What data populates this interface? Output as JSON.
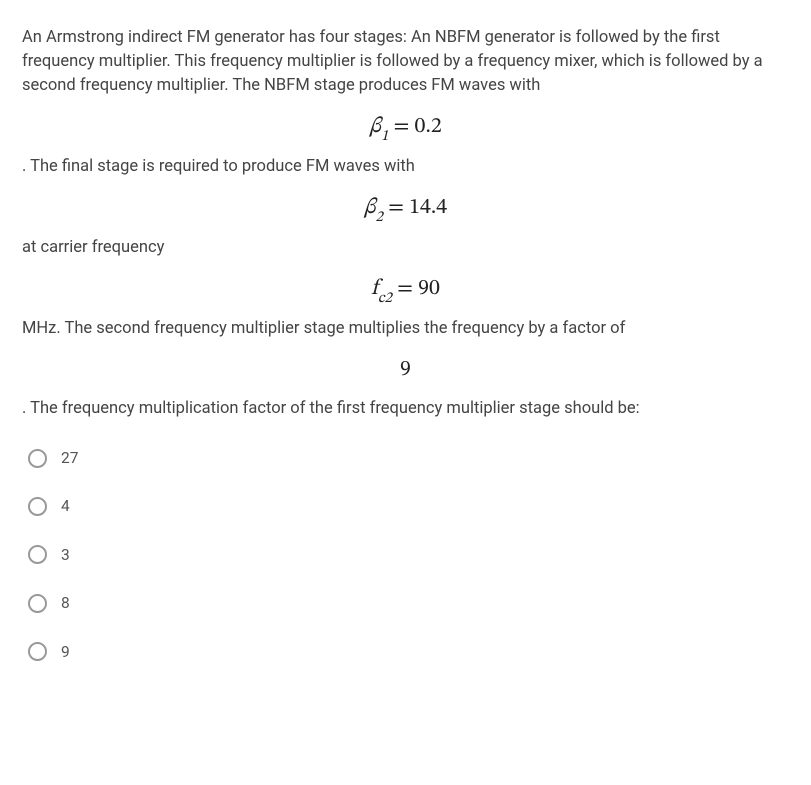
{
  "question": {
    "p1": "An Armstrong indirect FM generator has four stages: An NBFM generator is followed by the first frequency multiplier. This frequency multiplier is followed by a frequency mixer, which is followed by a second frequency multiplier. The NBFM stage produces FM waves with",
    "eq1_lhs_sym": "β",
    "eq1_lhs_sub": "1",
    "eq1_eq": " = 0.2",
    "p2": ". The final stage is required to produce FM waves with",
    "eq2_lhs_sym": "β",
    "eq2_lhs_sub": "2",
    "eq2_eq": " = 14.4",
    "p3": "at carrier frequency",
    "eq3_lhs_sym": "f",
    "eq3_lhs_sub": "c2",
    "eq3_eq": " = 90",
    "p4": "MHz. The second frequency multiplier stage multiplies the frequency by a factor of",
    "eq4": "9",
    "p5": ". The frequency multiplication factor of the first frequency multiplier stage should be:"
  },
  "options": [
    {
      "label": "27"
    },
    {
      "label": "4"
    },
    {
      "label": "3"
    },
    {
      "label": "8"
    },
    {
      "label": "9"
    }
  ],
  "styling": {
    "text_color": "#444",
    "equation_color": "#222",
    "radio_border_color": "#999",
    "background_color": "#ffffff",
    "body_fontsize": 16.5,
    "equation_fontsize": 22,
    "option_fontsize": 15.5
  }
}
